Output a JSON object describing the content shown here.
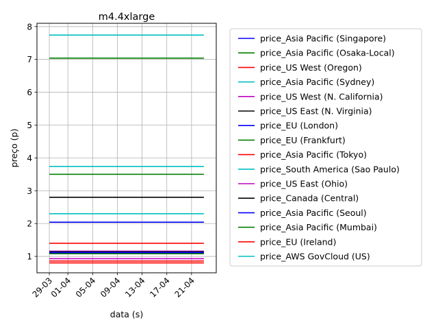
{
  "chart_data": {
    "type": "line",
    "title": "m4.4xlarge",
    "xlabel": "data (s)",
    "ylabel": "preço (p)",
    "x_ticks": [
      "29-03",
      "01-04",
      "05-04",
      "09-04",
      "13-04",
      "17-04",
      "21-04"
    ],
    "x_range": [
      "2019-03-29",
      "2019-04-23"
    ],
    "ylim": [
      0.5,
      8.1
    ],
    "y_ticks": [
      1,
      2,
      3,
      4,
      5,
      6,
      7,
      8
    ],
    "grid": true,
    "legend_position": "right, outside plot",
    "series": [
      {
        "name": "price_Asia Pacific (Singapore)",
        "color": "#0000ff",
        "x": [
          "2019-03-29",
          "2019-04-23"
        ],
        "y": [
          1.1,
          1.1
        ]
      },
      {
        "name": "price_Asia Pacific (Osaka-Local)",
        "color": "#008000",
        "x": [
          "2019-03-29",
          "2019-04-23"
        ],
        "y": [
          7.04,
          7.04
        ]
      },
      {
        "name": "price_US West (Oregon)",
        "color": "#ff0000",
        "x": [
          "2019-03-29",
          "2019-04-23"
        ],
        "y": [
          0.8,
          0.8
        ]
      },
      {
        "name": "price_Asia Pacific (Sydney)",
        "color": "#00bfbf",
        "x": [
          "2019-03-29",
          "2019-04-23"
        ],
        "y": [
          7.74,
          7.74
        ]
      },
      {
        "name": "price_US West (N. California)",
        "color": "#bf00bf",
        "x": [
          "2019-03-29",
          "2019-04-23"
        ],
        "y": [
          0.93,
          0.93
        ]
      },
      {
        "name": "price_US East (N. Virginia)",
        "color": "#000000",
        "x": [
          "2019-03-29",
          "2019-04-23"
        ],
        "y": [
          2.8,
          2.8
        ]
      },
      {
        "name": "price_EU (London)",
        "color": "#0000ff",
        "x": [
          "2019-03-29",
          "2019-04-23"
        ],
        "y": [
          2.04,
          2.04
        ]
      },
      {
        "name": "price_EU (Frankfurt)",
        "color": "#008000",
        "x": [
          "2019-03-29",
          "2019-04-23"
        ],
        "y": [
          3.5,
          3.5
        ]
      },
      {
        "name": "price_Asia Pacific (Tokyo)",
        "color": "#ff0000",
        "x": [
          "2019-03-29",
          "2019-04-23"
        ],
        "y": [
          1.4,
          1.4
        ]
      },
      {
        "name": "price_South America (Sao Paulo)",
        "color": "#00bfbf",
        "x": [
          "2019-03-29",
          "2019-04-23"
        ],
        "y": [
          2.3,
          2.3
        ]
      },
      {
        "name": "price_US East (Ohio)",
        "color": "#bf00bf",
        "x": [
          "2019-03-29",
          "2019-04-23"
        ],
        "y": [
          1.16,
          1.16
        ]
      },
      {
        "name": "price_Canada (Central)",
        "color": "#000000",
        "x": [
          "2019-03-29",
          "2019-04-23"
        ],
        "y": [
          1.14,
          1.14
        ]
      },
      {
        "name": "price_Asia Pacific (Seoul)",
        "color": "#0000ff",
        "x": [
          "2019-03-29",
          "2019-04-23"
        ],
        "y": [
          1.12,
          1.12
        ]
      },
      {
        "name": "price_Asia Pacific (Mumbai)",
        "color": "#008000",
        "x": [
          "2019-03-29",
          "2019-04-23"
        ],
        "y": [
          1.08,
          1.08
        ]
      },
      {
        "name": "price_EU (Ireland)",
        "color": "#ff0000",
        "x": [
          "2019-03-29",
          "2019-04-23"
        ],
        "y": [
          0.86,
          0.86
        ]
      },
      {
        "name": "price_AWS GovCloud (US)",
        "color": "#00bfbf",
        "x": [
          "2019-03-29",
          "2019-04-23"
        ],
        "y": [
          3.74,
          3.74
        ]
      }
    ]
  }
}
